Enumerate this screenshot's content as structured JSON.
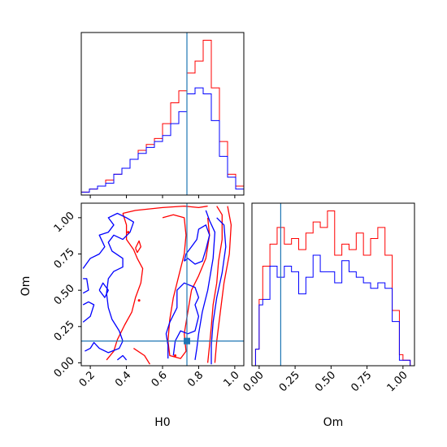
{
  "chart_data": {
    "type": "corner",
    "parameters": [
      "H0",
      "Om"
    ],
    "truths": {
      "H0": 0.735,
      "Om": 0.15
    },
    "truth_color": "#1f77b4",
    "series": [
      {
        "color": "#ff0000"
      },
      {
        "color": "#0000ff"
      }
    ],
    "panels": {
      "hist_H0": {
        "xlim": [
          0.15,
          1.05
        ],
        "bin_edges": [
          0.15,
          0.195,
          0.24,
          0.285,
          0.33,
          0.375,
          0.42,
          0.465,
          0.51,
          0.555,
          0.6,
          0.645,
          0.69,
          0.735,
          0.78,
          0.825,
          0.87,
          0.915,
          0.96,
          1.005,
          1.05
        ],
        "red": [
          1,
          2,
          3,
          5,
          7,
          9,
          12,
          15,
          17,
          19,
          24,
          31,
          35,
          41,
          45,
          52,
          36,
          18,
          7,
          3
        ],
        "blue": [
          1,
          2,
          3,
          4,
          7,
          9,
          12,
          14,
          16,
          18,
          20,
          24,
          28,
          34,
          36,
          34,
          25,
          13,
          6,
          2
        ]
      },
      "hist_Om": {
        "xlim": [
          -0.05,
          1.08
        ],
        "xticks": [
          0.0,
          0.25,
          0.5,
          0.75,
          1.0
        ],
        "xtick_labels": [
          "0.00",
          "0.25",
          "0.50",
          "0.75",
          "1.00"
        ],
        "xlabel": "Om",
        "bin_edges": [
          -0.025,
          0.0,
          0.025,
          0.075,
          0.125,
          0.175,
          0.225,
          0.275,
          0.325,
          0.375,
          0.425,
          0.475,
          0.525,
          0.575,
          0.625,
          0.675,
          0.725,
          0.775,
          0.825,
          0.875,
          0.925,
          0.975,
          1.0,
          1.05
        ],
        "red": [
          3,
          12,
          18,
          22,
          25,
          22,
          23,
          21,
          24,
          26,
          25,
          28,
          20,
          22,
          21,
          24,
          20,
          23,
          25,
          20,
          10,
          2,
          1
        ],
        "blue": [
          3,
          11,
          12,
          18,
          16,
          18,
          17,
          13,
          16,
          20,
          17,
          17,
          15,
          19,
          17,
          16,
          15,
          14,
          15,
          14,
          8,
          1,
          1
        ]
      },
      "scatter": {
        "xlim": [
          0.15,
          1.05
        ],
        "ylim": [
          -0.02,
          1.1
        ],
        "xticks": [
          0.2,
          0.4,
          0.6,
          0.8,
          1.0
        ],
        "xtick_labels": [
          "0.2",
          "0.4",
          "0.6",
          "0.8",
          "1.0"
        ],
        "yticks": [
          0.0,
          0.25,
          0.5,
          0.75,
          1.0
        ],
        "ytick_labels": [
          "0.00",
          "0.25",
          "0.50",
          "0.75",
          "1.00"
        ],
        "xlabel": "H0",
        "ylabel": "Om",
        "red_contours": [
          [
            [
              0.38,
              1.03
            ],
            [
              0.45,
              1.05
            ],
            [
              0.6,
              1.07
            ],
            [
              0.72,
              1.08
            ],
            [
              0.8,
              1.07
            ],
            [
              0.85,
              1.08
            ]
          ],
          [
            [
              0.38,
              1.03
            ],
            [
              0.4,
              0.95
            ],
            [
              0.4,
              0.85
            ],
            [
              0.44,
              0.78
            ],
            [
              0.46,
              0.72
            ],
            [
              0.49,
              0.65
            ],
            [
              0.48,
              0.55
            ],
            [
              0.45,
              0.45
            ],
            [
              0.43,
              0.35
            ],
            [
              0.39,
              0.26
            ],
            [
              0.35,
              0.16
            ],
            [
              0.33,
              0.08
            ],
            [
              0.29,
              0.02
            ]
          ],
          [
            [
              0.6,
              1.0
            ],
            [
              0.66,
              1.02
            ],
            [
              0.72,
              1.0
            ],
            [
              0.73,
              0.88
            ],
            [
              0.72,
              0.75
            ],
            [
              0.69,
              0.6
            ],
            [
              0.66,
              0.45
            ],
            [
              0.64,
              0.3
            ],
            [
              0.63,
              0.15
            ],
            [
              0.64,
              0.05
            ],
            [
              0.7,
              0.03
            ],
            [
              0.73,
              0.08
            ],
            [
              0.72,
              0.2
            ],
            [
              0.74,
              0.35
            ],
            [
              0.76,
              0.5
            ],
            [
              0.8,
              0.6
            ],
            [
              0.84,
              0.72
            ],
            [
              0.86,
              0.88
            ],
            [
              0.85,
              1.0
            ]
          ],
          [
            [
              0.9,
              1.08
            ],
            [
              0.93,
              1.02
            ],
            [
              0.93,
              0.85
            ],
            [
              0.91,
              0.7
            ],
            [
              0.9,
              0.55
            ],
            [
              0.88,
              0.4
            ],
            [
              0.87,
              0.25
            ],
            [
              0.86,
              0.12
            ],
            [
              0.85,
              0.0
            ]
          ],
          [
            [
              0.96,
              1.08
            ],
            [
              0.98,
              0.95
            ],
            [
              0.97,
              0.75
            ],
            [
              0.94,
              0.55
            ],
            [
              0.92,
              0.35
            ],
            [
              0.9,
              0.15
            ],
            [
              0.89,
              0.0
            ]
          ],
          [
            [
              0.45,
              0.79
            ],
            [
              0.47,
              0.84
            ],
            [
              0.48,
              0.8
            ],
            [
              0.46,
              0.76
            ],
            [
              0.45,
              0.79
            ]
          ],
          [
            [
              0.44,
              0.1
            ],
            [
              0.5,
              0.05
            ],
            [
              0.53,
              -0.01
            ]
          ]
        ],
        "red_dots": [
          [
            0.41,
            0.9
          ],
          [
            0.47,
            0.43
          ],
          [
            0.67,
            0.05
          ]
        ],
        "blue_contours": [
          [
            [
              0.16,
              0.65
            ],
            [
              0.2,
              0.72
            ],
            [
              0.25,
              0.75
            ],
            [
              0.28,
              0.8
            ],
            [
              0.25,
              0.88
            ],
            [
              0.3,
              0.9
            ],
            [
              0.33,
              0.95
            ],
            [
              0.3,
              1.0
            ],
            [
              0.35,
              1.03
            ],
            [
              0.4,
              1.0
            ],
            [
              0.44,
              0.97
            ],
            [
              0.42,
              0.9
            ],
            [
              0.38,
              0.85
            ],
            [
              0.33,
              0.88
            ],
            [
              0.3,
              0.83
            ],
            [
              0.32,
              0.77
            ],
            [
              0.38,
              0.72
            ],
            [
              0.38,
              0.66
            ],
            [
              0.33,
              0.63
            ],
            [
              0.3,
              0.58
            ],
            [
              0.29,
              0.48
            ],
            [
              0.3,
              0.38
            ],
            [
              0.32,
              0.3
            ],
            [
              0.36,
              0.22
            ],
            [
              0.38,
              0.15
            ],
            [
              0.36,
              0.1
            ],
            [
              0.3,
              0.07
            ],
            [
              0.25,
              0.1
            ],
            [
              0.22,
              0.14
            ],
            [
              0.2,
              0.1
            ],
            [
              0.17,
              0.08
            ]
          ],
          [
            [
              0.16,
              0.28
            ],
            [
              0.2,
              0.32
            ],
            [
              0.22,
              0.4
            ],
            [
              0.19,
              0.42
            ],
            [
              0.16,
              0.4
            ]
          ],
          [
            [
              0.16,
              0.48
            ],
            [
              0.19,
              0.5
            ],
            [
              0.18,
              0.58
            ],
            [
              0.16,
              0.58
            ]
          ],
          [
            [
              0.25,
              0.5
            ],
            [
              0.28,
              0.45
            ],
            [
              0.3,
              0.5
            ],
            [
              0.27,
              0.55
            ],
            [
              0.25,
              0.5
            ]
          ],
          [
            [
              0.35,
              0.02
            ],
            [
              0.38,
              0.05
            ],
            [
              0.4,
              0.02
            ]
          ],
          [
            [
              0.63,
              0.03
            ],
            [
              0.63,
              0.12
            ],
            [
              0.62,
              0.2
            ],
            [
              0.64,
              0.28
            ],
            [
              0.68,
              0.38
            ],
            [
              0.68,
              0.5
            ],
            [
              0.72,
              0.55
            ],
            [
              0.78,
              0.52
            ],
            [
              0.8,
              0.45
            ],
            [
              0.78,
              0.4
            ],
            [
              0.8,
              0.32
            ],
            [
              0.78,
              0.22
            ],
            [
              0.74,
              0.2
            ],
            [
              0.7,
              0.22
            ],
            [
              0.67,
              0.15
            ],
            [
              0.66,
              0.05
            ]
          ],
          [
            [
              0.72,
              0.7
            ],
            [
              0.74,
              0.72
            ],
            [
              0.78,
              0.68
            ],
            [
              0.82,
              0.7
            ],
            [
              0.84,
              0.78
            ],
            [
              0.86,
              0.88
            ],
            [
              0.84,
              0.95
            ],
            [
              0.8,
              0.92
            ],
            [
              0.79,
              0.85
            ],
            [
              0.76,
              0.8
            ],
            [
              0.73,
              0.75
            ],
            [
              0.72,
              0.7
            ]
          ],
          [
            [
              0.84,
              1.05
            ],
            [
              0.86,
              0.98
            ],
            [
              0.89,
              0.9
            ],
            [
              0.88,
              0.72
            ],
            [
              0.85,
              0.5
            ],
            [
              0.82,
              0.35
            ],
            [
              0.8,
              0.2
            ],
            [
              0.79,
              0.1
            ],
            [
              0.78,
              0.02
            ]
          ],
          [
            [
              0.9,
              1.0
            ],
            [
              0.94,
              0.95
            ],
            [
              0.95,
              0.8
            ],
            [
              0.93,
              0.62
            ],
            [
              0.9,
              0.45
            ],
            [
              0.88,
              0.28
            ],
            [
              0.87,
              0.12
            ],
            [
              0.87,
              -0.01
            ]
          ]
        ]
      }
    }
  }
}
